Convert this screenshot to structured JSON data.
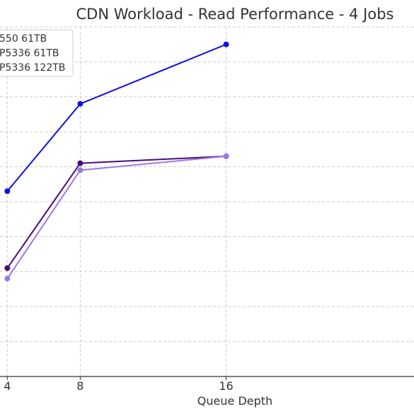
{
  "chart_data": {
    "type": "line",
    "title": "CDN Workload - Read Performance - 4 Jobs",
    "xlabel": "Queue Depth",
    "ylabel": "",
    "x": [
      4,
      8,
      16
    ],
    "x_ticks": [
      4,
      8,
      16
    ],
    "xlim": [
      3.6,
      26.3
    ],
    "grid": true,
    "legend_position": "top-left",
    "series": [
      {
        "name": "550 61TB",
        "color": "#1111dd",
        "values": [
          5.3,
          7.8,
          9.5
        ]
      },
      {
        "name": "P5336 61TB",
        "color": "#4b0c7a",
        "values": [
          3.1,
          6.1,
          6.3
        ]
      },
      {
        "name": "P5336 122TB",
        "color": "#9b7ae0",
        "values": [
          2.8,
          5.9,
          6.3
        ]
      }
    ],
    "ylim": [
      0,
      10
    ]
  }
}
